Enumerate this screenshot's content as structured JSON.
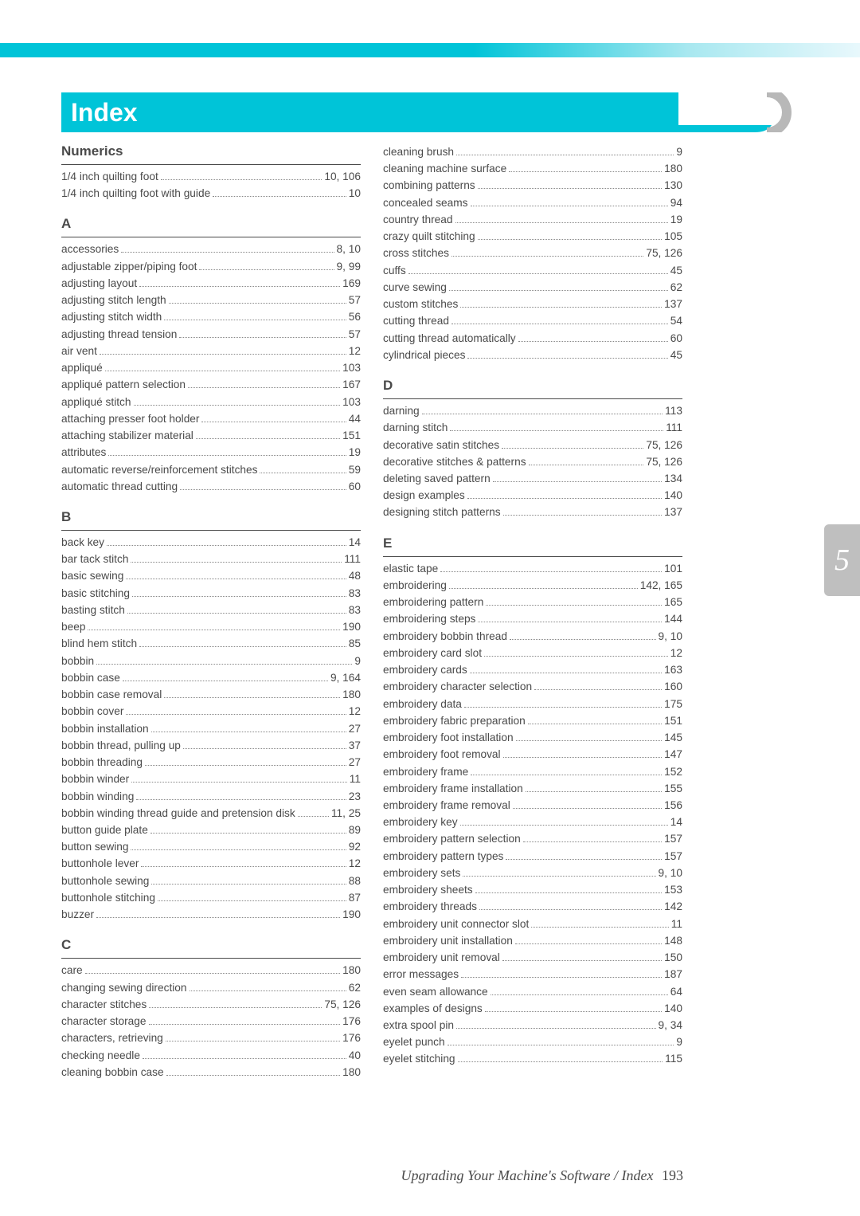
{
  "title": "Index",
  "side_tab": "5",
  "footer_text": "Upgrading Your Machine's Software / Index",
  "footer_page": "193",
  "left": [
    {
      "head": "Numerics"
    },
    {
      "t": "1/4 inch quilting foot",
      "p": "10, 106"
    },
    {
      "t": "1/4 inch quilting foot with guide",
      "p": "10"
    },
    {
      "head": "A"
    },
    {
      "t": "accessories",
      "p": "8, 10"
    },
    {
      "t": "adjustable zipper/piping foot",
      "p": "9, 99"
    },
    {
      "t": "adjusting layout",
      "p": "169"
    },
    {
      "t": "adjusting stitch length",
      "p": "57"
    },
    {
      "t": "adjusting stitch width",
      "p": "56"
    },
    {
      "t": "adjusting thread tension",
      "p": "57"
    },
    {
      "t": "air vent",
      "p": "12"
    },
    {
      "t": "appliqué",
      "p": "103"
    },
    {
      "t": "appliqué pattern selection",
      "p": "167"
    },
    {
      "t": "appliqué stitch",
      "p": "103"
    },
    {
      "t": "attaching presser foot holder",
      "p": "44"
    },
    {
      "t": "attaching stabilizer material",
      "p": "151"
    },
    {
      "t": "attributes",
      "p": "19"
    },
    {
      "t": "automatic reverse/reinforcement stitches",
      "p": "59"
    },
    {
      "t": "automatic thread cutting",
      "p": "60"
    },
    {
      "head": "B"
    },
    {
      "t": "back key",
      "p": "14"
    },
    {
      "t": "bar tack stitch",
      "p": "111"
    },
    {
      "t": "basic sewing",
      "p": "48"
    },
    {
      "t": "basic stitching",
      "p": "83"
    },
    {
      "t": "basting stitch",
      "p": "83"
    },
    {
      "t": "beep",
      "p": "190"
    },
    {
      "t": "blind hem stitch",
      "p": "85"
    },
    {
      "t": "bobbin",
      "p": "9"
    },
    {
      "t": "bobbin case",
      "p": "9, 164"
    },
    {
      "t": "bobbin case removal",
      "p": "180"
    },
    {
      "t": "bobbin cover",
      "p": "12"
    },
    {
      "t": "bobbin installation",
      "p": "27"
    },
    {
      "t": "bobbin thread, pulling up",
      "p": "37"
    },
    {
      "t": "bobbin threading",
      "p": "27"
    },
    {
      "t": "bobbin winder",
      "p": "11"
    },
    {
      "t": "bobbin winding",
      "p": "23"
    },
    {
      "t": "bobbin winding thread guide and pretension disk",
      "p": "11, 25"
    },
    {
      "t": "button guide plate",
      "p": "89"
    },
    {
      "t": "button sewing",
      "p": "92"
    },
    {
      "t": "buttonhole lever",
      "p": "12"
    },
    {
      "t": "buttonhole sewing",
      "p": "88"
    },
    {
      "t": "buttonhole stitching",
      "p": "87"
    },
    {
      "t": "buzzer",
      "p": "190"
    },
    {
      "head": "C"
    },
    {
      "t": "care",
      "p": "180"
    },
    {
      "t": "changing sewing direction",
      "p": "62"
    },
    {
      "t": "character stitches",
      "p": "75, 126"
    },
    {
      "t": "character storage",
      "p": "176"
    },
    {
      "t": "characters, retrieving",
      "p": "176"
    },
    {
      "t": "checking needle",
      "p": "40"
    },
    {
      "t": "cleaning bobbin case",
      "p": "180"
    }
  ],
  "right": [
    {
      "t": "cleaning brush",
      "p": "9"
    },
    {
      "t": "cleaning machine surface",
      "p": "180"
    },
    {
      "t": "combining patterns",
      "p": "130"
    },
    {
      "t": "concealed seams",
      "p": "94"
    },
    {
      "t": "country thread",
      "p": "19"
    },
    {
      "t": "crazy quilt stitching",
      "p": "105"
    },
    {
      "t": "cross stitches",
      "p": "75, 126"
    },
    {
      "t": "cuffs",
      "p": "45"
    },
    {
      "t": "curve sewing",
      "p": "62"
    },
    {
      "t": "custom stitches",
      "p": "137"
    },
    {
      "t": "cutting thread",
      "p": "54"
    },
    {
      "t": "cutting thread automatically",
      "p": "60"
    },
    {
      "t": "cylindrical pieces",
      "p": "45"
    },
    {
      "head": "D"
    },
    {
      "t": "darning",
      "p": "113"
    },
    {
      "t": "darning stitch",
      "p": "111"
    },
    {
      "t": "decorative satin stitches",
      "p": "75, 126"
    },
    {
      "t": "decorative stitches & patterns",
      "p": "75, 126"
    },
    {
      "t": "deleting saved pattern",
      "p": "134"
    },
    {
      "t": "design examples",
      "p": "140"
    },
    {
      "t": "designing stitch patterns",
      "p": "137"
    },
    {
      "head": "E"
    },
    {
      "t": "elastic tape",
      "p": "101"
    },
    {
      "t": "embroidering",
      "p": "142, 165"
    },
    {
      "t": "embroidering pattern",
      "p": "165"
    },
    {
      "t": "embroidering steps",
      "p": "144"
    },
    {
      "t": "embroidery bobbin thread",
      "p": "9, 10"
    },
    {
      "t": "embroidery card slot",
      "p": "12"
    },
    {
      "t": "embroidery cards",
      "p": "163"
    },
    {
      "t": "embroidery character selection",
      "p": "160"
    },
    {
      "t": "embroidery data",
      "p": "175"
    },
    {
      "t": "embroidery fabric preparation",
      "p": "151"
    },
    {
      "t": "embroidery foot installation",
      "p": "145"
    },
    {
      "t": "embroidery foot removal",
      "p": "147"
    },
    {
      "t": "embroidery frame",
      "p": "152"
    },
    {
      "t": "embroidery frame installation",
      "p": "155"
    },
    {
      "t": "embroidery frame removal",
      "p": "156"
    },
    {
      "t": "embroidery key",
      "p": "14"
    },
    {
      "t": "embroidery pattern selection",
      "p": "157"
    },
    {
      "t": "embroidery pattern types",
      "p": "157"
    },
    {
      "t": "embroidery sets",
      "p": "9, 10"
    },
    {
      "t": "embroidery sheets",
      "p": "153"
    },
    {
      "t": "embroidery threads",
      "p": "142"
    },
    {
      "t": "embroidery unit connector slot",
      "p": "11"
    },
    {
      "t": "embroidery unit installation",
      "p": "148"
    },
    {
      "t": "embroidery unit removal",
      "p": "150"
    },
    {
      "t": "error messages",
      "p": "187"
    },
    {
      "t": "even seam allowance",
      "p": "64"
    },
    {
      "t": "examples of designs",
      "p": "140"
    },
    {
      "t": "extra spool pin",
      "p": "9, 34"
    },
    {
      "t": "eyelet punch",
      "p": "9"
    },
    {
      "t": "eyelet stitching",
      "p": "115"
    }
  ]
}
